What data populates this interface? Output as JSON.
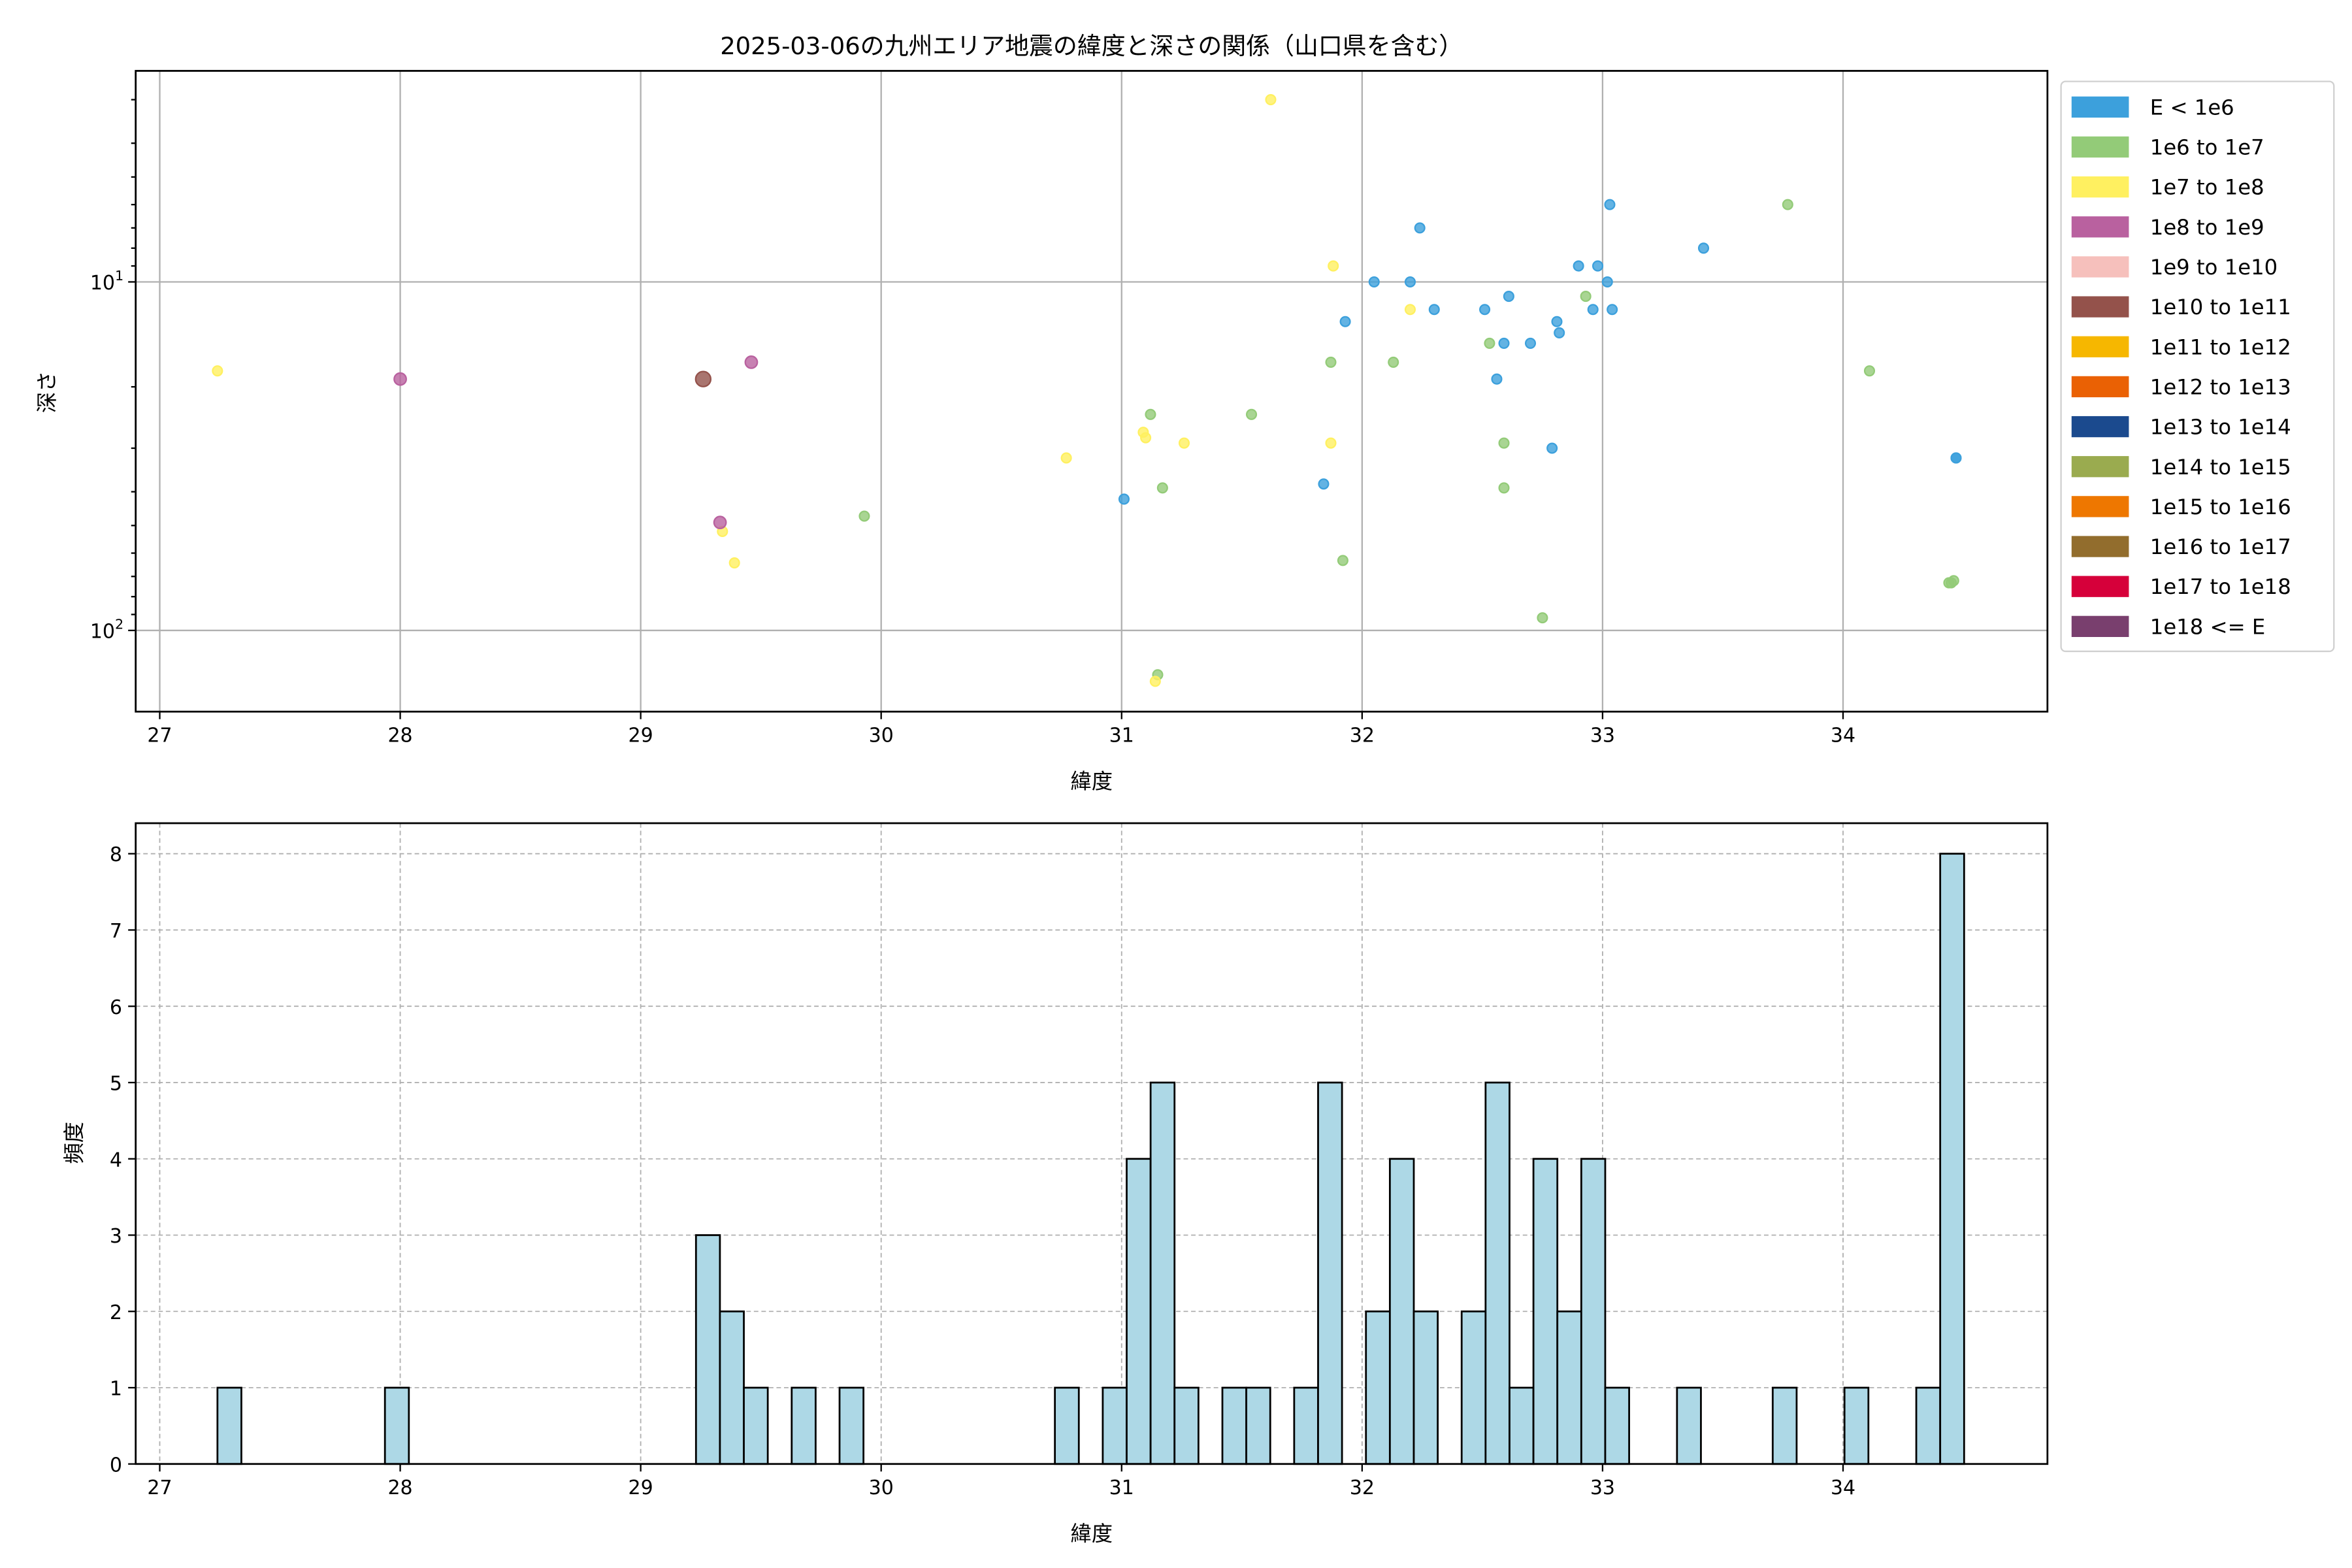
{
  "chart_data": [
    {
      "type": "scatter",
      "title": "2025-03-06の九州エリア地震の緯度と深さの関係（山口県を含む）",
      "xlabel": "緯度",
      "ylabel": "深さ",
      "xlim": [
        26.9,
        34.85
      ],
      "ylim": [
        2.48,
        171
      ],
      "yscale": "log",
      "yinverted": true,
      "grid": true,
      "xticks": [
        "27",
        "28",
        "29",
        "30",
        "31",
        "32",
        "33",
        "34"
      ],
      "yticks": [
        {
          "value": 10,
          "label": "10",
          "exp": "1"
        },
        {
          "value": 100,
          "label": "10",
          "exp": "2"
        }
      ],
      "legend_position": "outside-right",
      "legend": [
        {
          "label": "E < 1e6",
          "color": "#3ca0dc"
        },
        {
          "label": "1e6 to 1e7",
          "color": "#93cb78"
        },
        {
          "label": "1e7 to 1e8",
          "color": "#fff060"
        },
        {
          "label": "1e8 to 1e9",
          "color": "#b9619f"
        },
        {
          "label": "1e9 to 1e10",
          "color": "#f6c0bc"
        },
        {
          "label": "1e10 to 1e11",
          "color": "#94524b"
        },
        {
          "label": "1e11 to 1e12",
          "color": "#f6b700"
        },
        {
          "label": "1e12 to 1e13",
          "color": "#ea6104"
        },
        {
          "label": "1e13 to 1e14",
          "color": "#1b4a8e"
        },
        {
          "label": "1e14 to 1e15",
          "color": "#9aab4f"
        },
        {
          "label": "1e15 to 1e16",
          "color": "#ee7700"
        },
        {
          "label": "1e16 to 1e17",
          "color": "#926d2d"
        },
        {
          "label": "1e17 to 1e18",
          "color": "#d6003a"
        },
        {
          "label": "1e18 <= E",
          "color": "#793f6e"
        }
      ],
      "points": [
        {
          "lat": 27.24,
          "depth": 18,
          "cls": 2
        },
        {
          "lat": 28.0,
          "depth": 19,
          "cls": 3
        },
        {
          "lat": 29.26,
          "depth": 19,
          "cls": 5
        },
        {
          "lat": 29.46,
          "depth": 17,
          "cls": 3
        },
        {
          "lat": 29.34,
          "depth": 52,
          "cls": 2
        },
        {
          "lat": 29.33,
          "depth": 49,
          "cls": 3
        },
        {
          "lat": 29.39,
          "depth": 64,
          "cls": 2
        },
        {
          "lat": 29.93,
          "depth": 47,
          "cls": 1
        },
        {
          "lat": 30.77,
          "depth": 32,
          "cls": 2
        },
        {
          "lat": 31.01,
          "depth": 42,
          "cls": 0
        },
        {
          "lat": 31.09,
          "depth": 27,
          "cls": 2
        },
        {
          "lat": 31.1,
          "depth": 28,
          "cls": 2
        },
        {
          "lat": 31.12,
          "depth": 24,
          "cls": 1
        },
        {
          "lat": 31.17,
          "depth": 39,
          "cls": 1
        },
        {
          "lat": 31.26,
          "depth": 29,
          "cls": 2
        },
        {
          "lat": 31.15,
          "depth": 134,
          "cls": 1
        },
        {
          "lat": 31.14,
          "depth": 140,
          "cls": 2
        },
        {
          "lat": 31.54,
          "depth": 24,
          "cls": 1
        },
        {
          "lat": 31.62,
          "depth": 3.0,
          "cls": 2
        },
        {
          "lat": 31.84,
          "depth": 38,
          "cls": 0
        },
        {
          "lat": 31.87,
          "depth": 17,
          "cls": 1
        },
        {
          "lat": 31.87,
          "depth": 29,
          "cls": 2
        },
        {
          "lat": 31.88,
          "depth": 9,
          "cls": 2
        },
        {
          "lat": 31.93,
          "depth": 13,
          "cls": 0
        },
        {
          "lat": 31.92,
          "depth": 63,
          "cls": 1
        },
        {
          "lat": 32.05,
          "depth": 10,
          "cls": 0
        },
        {
          "lat": 32.13,
          "depth": 17,
          "cls": 1
        },
        {
          "lat": 32.2,
          "depth": 10,
          "cls": 0
        },
        {
          "lat": 32.2,
          "depth": 12,
          "cls": 2
        },
        {
          "lat": 32.24,
          "depth": 7,
          "cls": 0
        },
        {
          "lat": 32.3,
          "depth": 12,
          "cls": 0
        },
        {
          "lat": 32.51,
          "depth": 12,
          "cls": 0
        },
        {
          "lat": 32.53,
          "depth": 15,
          "cls": 1
        },
        {
          "lat": 32.56,
          "depth": 19,
          "cls": 0
        },
        {
          "lat": 32.59,
          "depth": 15,
          "cls": 0
        },
        {
          "lat": 32.61,
          "depth": 11,
          "cls": 0
        },
        {
          "lat": 32.59,
          "depth": 29,
          "cls": 1
        },
        {
          "lat": 32.59,
          "depth": 39,
          "cls": 1
        },
        {
          "lat": 32.7,
          "depth": 15,
          "cls": 0
        },
        {
          "lat": 32.75,
          "depth": 92,
          "cls": 1
        },
        {
          "lat": 32.79,
          "depth": 30,
          "cls": 0
        },
        {
          "lat": 32.81,
          "depth": 13,
          "cls": 0
        },
        {
          "lat": 32.82,
          "depth": 14,
          "cls": 0
        },
        {
          "lat": 32.9,
          "depth": 9,
          "cls": 0
        },
        {
          "lat": 32.93,
          "depth": 11,
          "cls": 1
        },
        {
          "lat": 32.96,
          "depth": 12,
          "cls": 0
        },
        {
          "lat": 32.98,
          "depth": 9,
          "cls": 0
        },
        {
          "lat": 33.02,
          "depth": 10,
          "cls": 0
        },
        {
          "lat": 33.03,
          "depth": 6,
          "cls": 0
        },
        {
          "lat": 33.04,
          "depth": 12,
          "cls": 0
        },
        {
          "lat": 33.42,
          "depth": 8,
          "cls": 0
        },
        {
          "lat": 33.77,
          "depth": 6,
          "cls": 1
        },
        {
          "lat": 34.11,
          "depth": 18,
          "cls": 1
        },
        {
          "lat": 34.47,
          "depth": 32,
          "cls": 0
        },
        {
          "lat": 34.47,
          "depth": 32,
          "cls": 0
        },
        {
          "lat": 34.44,
          "depth": 73,
          "cls": 1
        },
        {
          "lat": 34.45,
          "depth": 73,
          "cls": 1
        },
        {
          "lat": 34.46,
          "depth": 72,
          "cls": 1
        }
      ]
    },
    {
      "type": "bar",
      "subtype": "histogram",
      "xlabel": "緯度",
      "ylabel": "頻度",
      "xlim": [
        26.9,
        34.85
      ],
      "ylim": [
        0,
        8.4
      ],
      "grid": true,
      "xticks": [
        "27",
        "28",
        "29",
        "30",
        "31",
        "32",
        "33",
        "34"
      ],
      "yticks": [
        "0",
        "1",
        "2",
        "3",
        "4",
        "5",
        "6",
        "7",
        "8"
      ],
      "bin_start": 27.24,
      "bin_width": 0.0995,
      "bar_color": "#add8e6",
      "bins": [
        {
          "bin": 0,
          "count": 1
        },
        {
          "bin": 7,
          "count": 1
        },
        {
          "bin": 20,
          "count": 3
        },
        {
          "bin": 21,
          "count": 2
        },
        {
          "bin": 22,
          "count": 1
        },
        {
          "bin": 24,
          "count": 1
        },
        {
          "bin": 26,
          "count": 1
        },
        {
          "bin": 35,
          "count": 1
        },
        {
          "bin": 37,
          "count": 1
        },
        {
          "bin": 38,
          "count": 4
        },
        {
          "bin": 39,
          "count": 5
        },
        {
          "bin": 40,
          "count": 1
        },
        {
          "bin": 42,
          "count": 1
        },
        {
          "bin": 43,
          "count": 1
        },
        {
          "bin": 45,
          "count": 1
        },
        {
          "bin": 46,
          "count": 5
        },
        {
          "bin": 48,
          "count": 2
        },
        {
          "bin": 49,
          "count": 4
        },
        {
          "bin": 50,
          "count": 2
        },
        {
          "bin": 52,
          "count": 2
        },
        {
          "bin": 53,
          "count": 5
        },
        {
          "bin": 54,
          "count": 1
        },
        {
          "bin": 55,
          "count": 4
        },
        {
          "bin": 56,
          "count": 2
        },
        {
          "bin": 57,
          "count": 4
        },
        {
          "bin": 58,
          "count": 1
        },
        {
          "bin": 61,
          "count": 1
        },
        {
          "bin": 65,
          "count": 1
        },
        {
          "bin": 68,
          "count": 1
        },
        {
          "bin": 71,
          "count": 1
        },
        {
          "bin": 72,
          "count": 8
        }
      ]
    }
  ]
}
